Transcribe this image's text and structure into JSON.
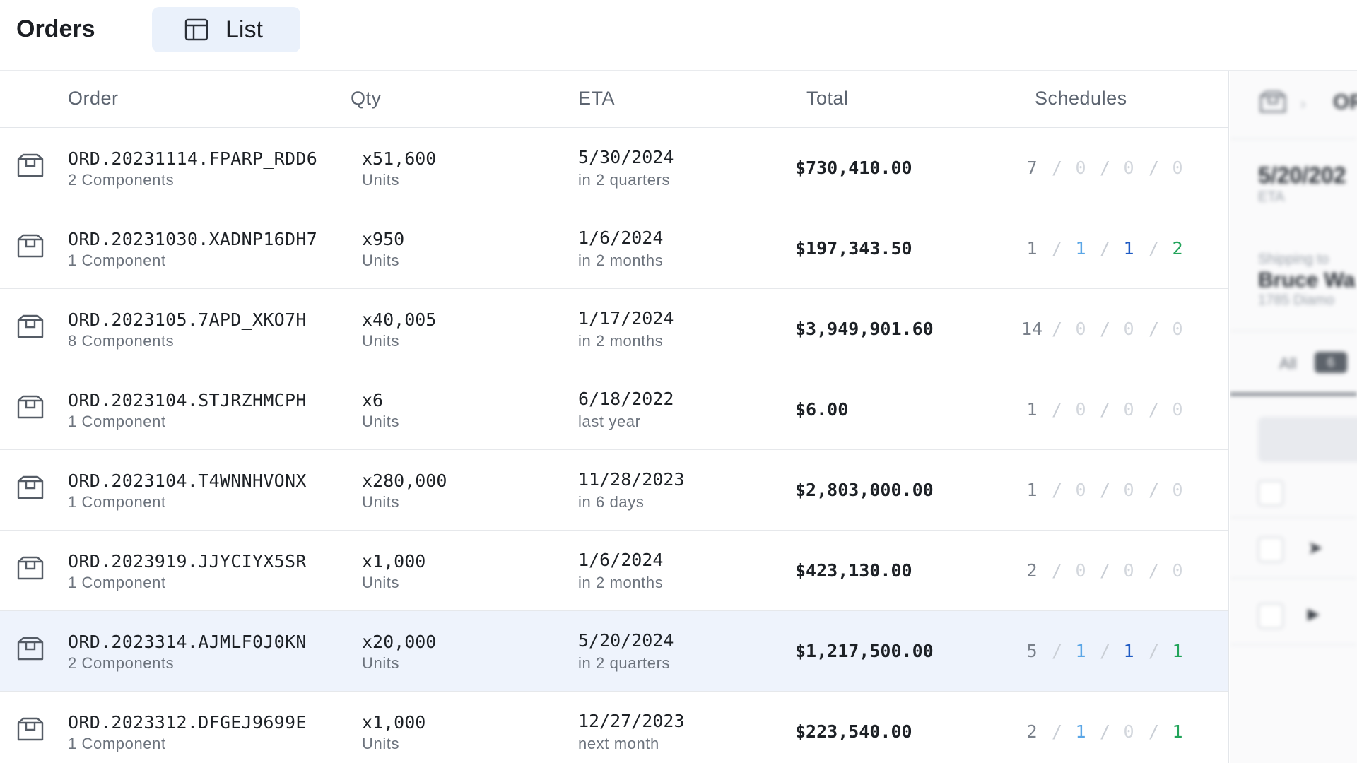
{
  "header": {
    "title": "Orders",
    "view_label": "List"
  },
  "columns": [
    "Order",
    "Qty",
    "ETA",
    "Total",
    "Schedules"
  ],
  "colors": {
    "neutral": "#7a818b",
    "muted": "#d3d7dd",
    "light_blue": "#5aa6e6",
    "dark_blue": "#1f5bc4",
    "green": "#22a45a",
    "slash": "#c9ced5"
  },
  "rows": [
    {
      "order": "ORD.20231114.FPARP_RDD6",
      "sub": "2 Components",
      "qty": "x51,600",
      "qty_unit": "Units",
      "eta": "5/30/2024",
      "eta_rel": "in 2 quarters",
      "total": "$730,410.00",
      "sched": [
        "7",
        "0",
        "0",
        "0"
      ],
      "sched_states": [
        "neutral",
        "muted",
        "muted",
        "muted"
      ],
      "selected": false
    },
    {
      "order": "ORD.20231030.XADNP16DH7",
      "sub": "1 Component",
      "qty": "x950",
      "qty_unit": "Units",
      "eta": "1/6/2024",
      "eta_rel": "in 2 months",
      "total": "$197,343.50",
      "sched": [
        "1",
        "1",
        "1",
        "2"
      ],
      "sched_states": [
        "neutral",
        "light_blue",
        "dark_blue",
        "green"
      ],
      "selected": false
    },
    {
      "order": "ORD.2023105.7APD_XKO7H",
      "sub": "8 Components",
      "qty": "x40,005",
      "qty_unit": "Units",
      "eta": "1/17/2024",
      "eta_rel": "in 2 months",
      "total": "$3,949,901.60",
      "sched": [
        "14",
        "0",
        "0",
        "0"
      ],
      "sched_states": [
        "neutral",
        "muted",
        "muted",
        "muted"
      ],
      "selected": false
    },
    {
      "order": "ORD.2023104.STJRZHMCPH",
      "sub": "1 Component",
      "qty": "x6",
      "qty_unit": "Units",
      "eta": "6/18/2022",
      "eta_rel": "last year",
      "total": "$6.00",
      "sched": [
        "1",
        "0",
        "0",
        "0"
      ],
      "sched_states": [
        "neutral",
        "muted",
        "muted",
        "muted"
      ],
      "selected": false
    },
    {
      "order": "ORD.2023104.T4WNNHVONX",
      "sub": "1 Component",
      "qty": "x280,000",
      "qty_unit": "Units",
      "eta": "11/28/2023",
      "eta_rel": "in 6 days",
      "total": "$2,803,000.00",
      "sched": [
        "1",
        "0",
        "0",
        "0"
      ],
      "sched_states": [
        "neutral",
        "muted",
        "muted",
        "muted"
      ],
      "selected": false
    },
    {
      "order": "ORD.2023919.JJYCIYX5SR",
      "sub": "1 Component",
      "qty": "x1,000",
      "qty_unit": "Units",
      "eta": "1/6/2024",
      "eta_rel": "in 2 months",
      "total": "$423,130.00",
      "sched": [
        "2",
        "0",
        "0",
        "0"
      ],
      "sched_states": [
        "neutral",
        "muted",
        "muted",
        "muted"
      ],
      "selected": false
    },
    {
      "order": "ORD.2023314.AJMLF0J0KN",
      "sub": "2 Components",
      "qty": "x20,000",
      "qty_unit": "Units",
      "eta": "5/20/2024",
      "eta_rel": "in 2 quarters",
      "total": "$1,217,500.00",
      "sched": [
        "5",
        "1",
        "1",
        "1"
      ],
      "sched_states": [
        "neutral",
        "light_blue",
        "dark_blue",
        "green"
      ],
      "selected": true
    },
    {
      "order": "ORD.2023312.DFGEJ9699E",
      "sub": "1 Component",
      "qty": "x1,000",
      "qty_unit": "Units",
      "eta": "12/27/2023",
      "eta_rel": "next month",
      "total": "$223,540.00",
      "sched": [
        "2",
        "1",
        "0",
        "1"
      ],
      "sched_states": [
        "neutral",
        "light_blue",
        "muted",
        "green"
      ],
      "selected": false
    }
  ],
  "side_panel": {
    "breadcrumb_tail": "OR",
    "eta_value": "5/20/202",
    "eta_label": "ETA",
    "ship_label": "Shipping to",
    "ship_name": "Bruce Wa",
    "ship_addr": "1785 Diamo",
    "tab_all": "All",
    "tab_count": "6"
  }
}
